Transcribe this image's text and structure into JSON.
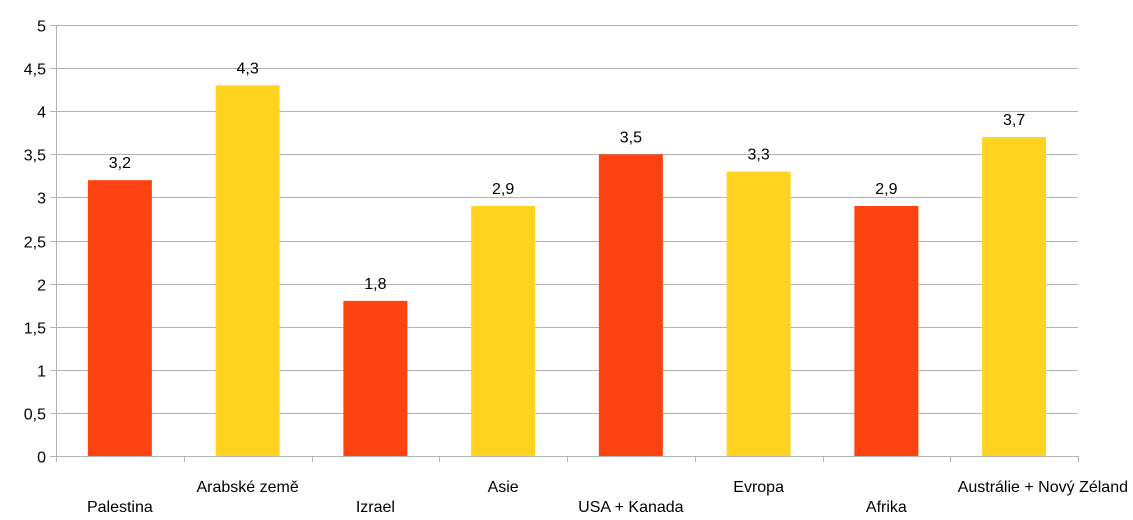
{
  "chart_data": {
    "type": "bar",
    "categories": [
      "Palestina",
      "Arabské země",
      "Izrael",
      "Asie",
      "USA + Kanada",
      "Evropa",
      "Afrika",
      "Austrálie + Nový Zéland"
    ],
    "values": [
      3.2,
      4.3,
      1.8,
      2.9,
      3.5,
      3.3,
      2.9,
      3.7
    ],
    "data_labels": [
      "3,2",
      "4,3",
      "1,8",
      "2,9",
      "3,5",
      "3,3",
      "2,9",
      "3,7"
    ],
    "bar_colors": [
      "#ff4212",
      "#ffd320",
      "#ff4212",
      "#ffd320",
      "#ff4212",
      "#ffd320",
      "#ff4212",
      "#ffd320"
    ],
    "ylim": [
      0,
      5
    ],
    "yticks": [
      0,
      0.5,
      1,
      1.5,
      2,
      2.5,
      3,
      3.5,
      4,
      4.5,
      5
    ],
    "ytick_labels": [
      "0",
      "0,5",
      "1",
      "1,5",
      "2",
      "2,5",
      "3",
      "3,5",
      "4",
      "4,5",
      "5"
    ],
    "grid": true,
    "gridline_color": "#b3b3b3",
    "title": "",
    "xlabel": "",
    "ylabel": ""
  }
}
